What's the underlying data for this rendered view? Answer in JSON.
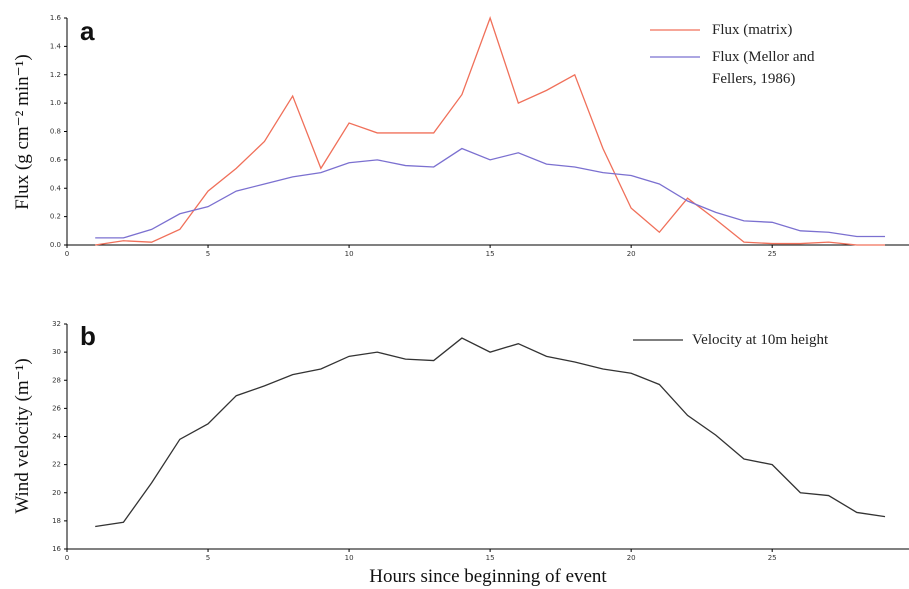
{
  "chart_data": [
    {
      "type": "line",
      "panel_label": "a",
      "y_label": "Flux (g cm⁻² min⁻¹)",
      "x": [
        1,
        2,
        3,
        4,
        5,
        6,
        7,
        8,
        9,
        10,
        11,
        12,
        13,
        14,
        15,
        16,
        17,
        18,
        19,
        20,
        21,
        22,
        23,
        24,
        25,
        26,
        27,
        28,
        29
      ],
      "xlim": [
        0,
        29.85
      ],
      "xticks": [
        0,
        5,
        10,
        15,
        20,
        25
      ],
      "ylim": [
        0,
        1.6
      ],
      "yticks": [
        {
          "value": 0,
          "label": "0.0"
        },
        0.2,
        0.4,
        0.6,
        0.8,
        {
          "value": 1,
          "label": "1.0"
        },
        1.2,
        1.4,
        1.6
      ],
      "series": [
        {
          "name": "Flux (matrix)",
          "color": "#f0705a",
          "values": [
            0.0,
            0.03,
            0.02,
            0.11,
            0.38,
            0.54,
            0.73,
            1.05,
            0.54,
            0.86,
            0.79,
            0.79,
            0.79,
            1.06,
            1.6,
            1.0,
            1.09,
            1.2,
            0.68,
            0.26,
            0.09,
            0.33,
            0.18,
            0.02,
            0.01,
            0.01,
            0.02,
            0.0,
            0.0
          ]
        },
        {
          "name": "Flux (Mellor and Fellers, 1986)",
          "color": "#7b70d0",
          "values": [
            0.05,
            0.05,
            0.11,
            0.22,
            0.27,
            0.38,
            0.43,
            0.48,
            0.51,
            0.58,
            0.6,
            0.56,
            0.55,
            0.68,
            0.6,
            0.65,
            0.57,
            0.55,
            0.51,
            0.49,
            0.43,
            0.31,
            0.23,
            0.17,
            0.16,
            0.1,
            0.09,
            0.06,
            0.06
          ]
        }
      ]
    },
    {
      "type": "line",
      "panel_label": "b",
      "y_label": "Wind velocity (m⁻¹)",
      "x_label": "Hours since beginning of event",
      "x": [
        1,
        2,
        3,
        4,
        5,
        6,
        7,
        8,
        9,
        10,
        11,
        12,
        13,
        14,
        15,
        16,
        17,
        18,
        19,
        20,
        21,
        22,
        23,
        24,
        25,
        26,
        27,
        28,
        29
      ],
      "xlim": [
        0,
        29.85
      ],
      "xticks": [
        0,
        5,
        10,
        15,
        20,
        25
      ],
      "ylim": [
        16,
        32
      ],
      "yticks": [
        16,
        18,
        20,
        22,
        24,
        26,
        28,
        30,
        32
      ],
      "series": [
        {
          "name": "Velocity at 10m height",
          "color": "#333333",
          "values": [
            17.6,
            17.9,
            20.7,
            23.8,
            24.9,
            26.9,
            27.6,
            28.4,
            28.8,
            29.7,
            30.0,
            29.5,
            29.4,
            31.0,
            30.0,
            30.6,
            29.7,
            29.3,
            28.8,
            28.5,
            27.7,
            25.5,
            24.1,
            22.4,
            22.0,
            20.0,
            19.8,
            18.6,
            18.3
          ]
        }
      ]
    }
  ]
}
